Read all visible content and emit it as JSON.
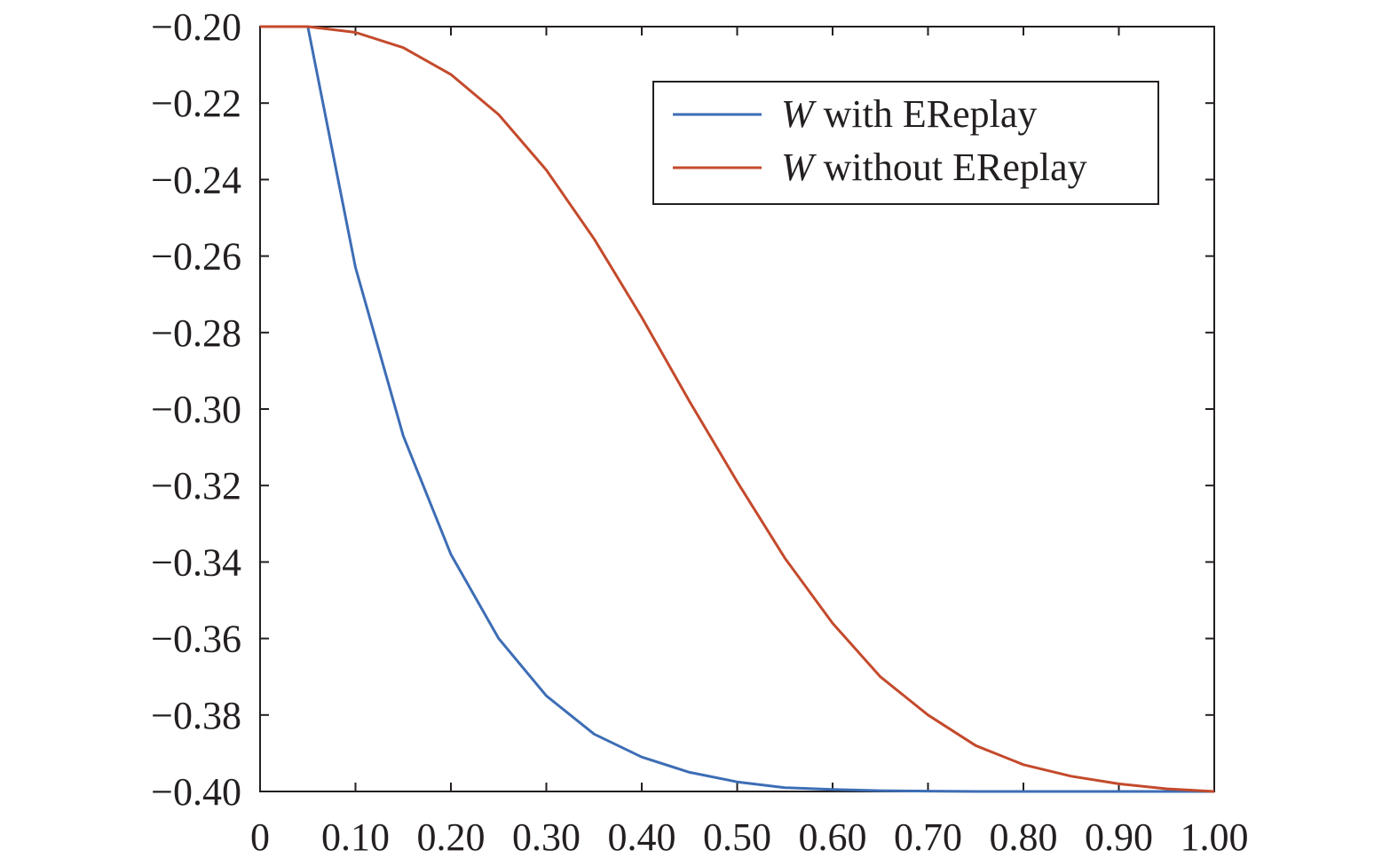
{
  "chart_data": {
    "type": "line",
    "title": "",
    "xlabel": "",
    "ylabel": "",
    "xlim": [
      0,
      1.0
    ],
    "ylim": [
      -0.4,
      -0.2
    ],
    "x_ticks": [
      "0",
      "0.10",
      "0.20",
      "0.30",
      "0.40",
      "0.50",
      "0.60",
      "0.70",
      "0.80",
      "0.90",
      "1.00"
    ],
    "y_ticks": [
      "−0.20",
      "−0.22",
      "−0.24",
      "−0.26",
      "−0.28",
      "−0.30",
      "−0.32",
      "−0.34",
      "−0.36",
      "−0.38",
      "−0.40"
    ],
    "grid": false,
    "legend_position": "top-right",
    "series": [
      {
        "name_symbol": "W",
        "name_rest": " with EReplay",
        "color": "#3d6db5",
        "x": [
          0,
          0.05,
          0.1,
          0.15,
          0.2,
          0.25,
          0.3,
          0.35,
          0.4,
          0.45,
          0.5,
          0.55,
          0.6,
          0.65,
          0.7,
          0.75,
          0.8,
          0.85,
          0.9,
          0.95,
          1.0
        ],
        "values": [
          -0.2,
          -0.2,
          -0.263,
          -0.307,
          -0.338,
          -0.36,
          -0.375,
          -0.385,
          -0.391,
          -0.395,
          -0.3975,
          -0.399,
          -0.3995,
          -0.3998,
          -0.3999,
          -0.4,
          -0.4,
          -0.4,
          -0.4,
          -0.4,
          -0.4
        ]
      },
      {
        "name_symbol": "W",
        "name_rest": " without EReplay",
        "color": "#c44a2c",
        "x": [
          0,
          0.05,
          0.1,
          0.15,
          0.2,
          0.25,
          0.3,
          0.35,
          0.4,
          0.45,
          0.5,
          0.55,
          0.6,
          0.65,
          0.7,
          0.75,
          0.8,
          0.85,
          0.9,
          0.95,
          1.0
        ],
        "values": [
          -0.2,
          -0.2,
          -0.2015,
          -0.2055,
          -0.2125,
          -0.223,
          -0.2375,
          -0.2555,
          -0.276,
          -0.298,
          -0.319,
          -0.339,
          -0.356,
          -0.37,
          -0.38,
          -0.388,
          -0.393,
          -0.396,
          -0.398,
          -0.3993,
          -0.4
        ]
      }
    ]
  }
}
